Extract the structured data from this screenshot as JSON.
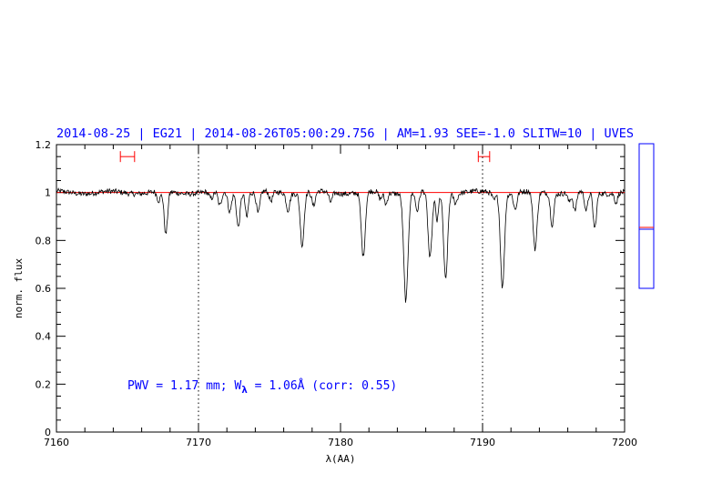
{
  "chart_data": {
    "type": "line",
    "title": "2014-08-25 | EG21 | 2014-08-26T05:00:29.756 | AM=1.93 SEE=-1.0 SLITW=10 | UVES",
    "xlabel": "λ(AA)",
    "ylabel": "norm. flux",
    "xlim": [
      7160,
      7200
    ],
    "ylim": [
      0,
      1.2
    ],
    "xticks": [
      "7160",
      "7170",
      "7180",
      "7190",
      "7200"
    ],
    "yticks": [
      "0",
      "0.2",
      "0.4",
      "0.6",
      "0.8",
      "1",
      "1.2"
    ],
    "grid": false,
    "continuum_level": 1.0,
    "continuum_color": "#ff0000",
    "spectrum_color": "#000000",
    "vertical_markers": [
      7170,
      7190
    ],
    "interval_markers": [
      [
        7164.5,
        7165.5
      ],
      [
        7189.7,
        7190.5
      ]
    ],
    "interval_marker_y": 1.15,
    "annotation": {
      "prefix": "PWV = 1.17 mm; W",
      "subscript": "λ",
      "suffix": " = 1.06Å (corr: 0.55)"
    },
    "side_panel": {
      "ylim": [
        0,
        1
      ],
      "marker_value": 0.415,
      "frame_color": "#0000ff",
      "marker_color": "#ff0000"
    },
    "baseline": 1.0,
    "absorption_lines": [
      {
        "x": 7167.7,
        "depth": 0.18,
        "width": 0.12
      },
      {
        "x": 7167.2,
        "depth": 0.04,
        "width": 0.12
      },
      {
        "x": 7170.9,
        "depth": 0.03,
        "width": 0.15
      },
      {
        "x": 7171.5,
        "depth": 0.06,
        "width": 0.12
      },
      {
        "x": 7172.2,
        "depth": 0.08,
        "width": 0.12
      },
      {
        "x": 7172.8,
        "depth": 0.14,
        "width": 0.12
      },
      {
        "x": 7173.4,
        "depth": 0.1,
        "width": 0.1
      },
      {
        "x": 7174.2,
        "depth": 0.09,
        "width": 0.12
      },
      {
        "x": 7175.1,
        "depth": 0.04,
        "width": 0.12
      },
      {
        "x": 7176.3,
        "depth": 0.07,
        "width": 0.12
      },
      {
        "x": 7177.3,
        "depth": 0.22,
        "width": 0.13
      },
      {
        "x": 7178.1,
        "depth": 0.06,
        "width": 0.12
      },
      {
        "x": 7179.3,
        "depth": 0.04,
        "width": 0.12
      },
      {
        "x": 7181.6,
        "depth": 0.27,
        "width": 0.14
      },
      {
        "x": 7182.8,
        "depth": 0.03,
        "width": 0.12
      },
      {
        "x": 7183.2,
        "depth": 0.05,
        "width": 0.1
      },
      {
        "x": 7184.6,
        "depth": 0.45,
        "width": 0.15
      },
      {
        "x": 7185.4,
        "depth": 0.08,
        "width": 0.12
      },
      {
        "x": 7186.3,
        "depth": 0.28,
        "width": 0.14
      },
      {
        "x": 7186.8,
        "depth": 0.12,
        "width": 0.1
      },
      {
        "x": 7187.4,
        "depth": 0.36,
        "width": 0.14
      },
      {
        "x": 7188.1,
        "depth": 0.04,
        "width": 0.12
      },
      {
        "x": 7190.8,
        "depth": 0.03,
        "width": 0.12
      },
      {
        "x": 7191.4,
        "depth": 0.39,
        "width": 0.14
      },
      {
        "x": 7192.3,
        "depth": 0.07,
        "width": 0.12
      },
      {
        "x": 7193.7,
        "depth": 0.24,
        "width": 0.14
      },
      {
        "x": 7194.9,
        "depth": 0.13,
        "width": 0.12
      },
      {
        "x": 7196.1,
        "depth": 0.04,
        "width": 0.1
      },
      {
        "x": 7196.5,
        "depth": 0.08,
        "width": 0.12
      },
      {
        "x": 7197.3,
        "depth": 0.08,
        "width": 0.12
      },
      {
        "x": 7197.9,
        "depth": 0.15,
        "width": 0.12
      },
      {
        "x": 7199.4,
        "depth": 0.04,
        "width": 0.1
      }
    ]
  }
}
